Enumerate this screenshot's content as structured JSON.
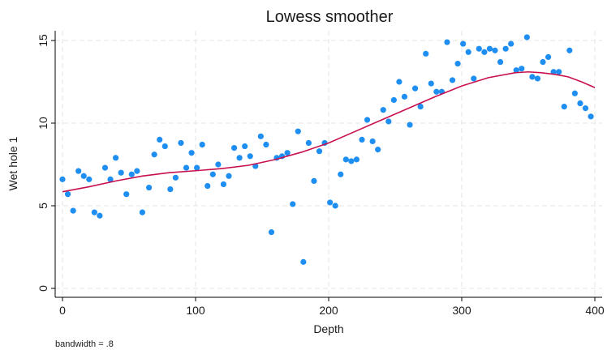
{
  "chart_data": {
    "type": "scatter",
    "title": "Lowess smoother",
    "xlabel": "Depth",
    "ylabel": "Wet hole 1",
    "xlim": [
      0,
      400
    ],
    "ylim": [
      0,
      15.5
    ],
    "xticks": [
      0,
      100,
      200,
      300,
      400
    ],
    "yticks": [
      0,
      5,
      10,
      15
    ],
    "grid": true,
    "note": "bandwidth = .8",
    "colors": {
      "points": "#1f8ef1",
      "line": "#c8104e"
    },
    "series": [
      {
        "type": "scatter",
        "points": [
          [
            0,
            6.6
          ],
          [
            4,
            5.7
          ],
          [
            8,
            4.7
          ],
          [
            12,
            7.1
          ],
          [
            16,
            6.8
          ],
          [
            20,
            6.6
          ],
          [
            24,
            4.6
          ],
          [
            28,
            4.4
          ],
          [
            32,
            7.3
          ],
          [
            36,
            6.6
          ],
          [
            40,
            7.9
          ],
          [
            44,
            7.0
          ],
          [
            48,
            5.7
          ],
          [
            52,
            6.9
          ],
          [
            56,
            7.1
          ],
          [
            60,
            4.6
          ],
          [
            65,
            6.1
          ],
          [
            69,
            8.1
          ],
          [
            73,
            9.0
          ],
          [
            77,
            8.6
          ],
          [
            81,
            6.0
          ],
          [
            85,
            6.7
          ],
          [
            89,
            8.8
          ],
          [
            93,
            7.3
          ],
          [
            97,
            8.2
          ],
          [
            101,
            7.3
          ],
          [
            105,
            8.7
          ],
          [
            109,
            6.2
          ],
          [
            113,
            6.9
          ],
          [
            117,
            7.5
          ],
          [
            121,
            6.3
          ],
          [
            125,
            6.8
          ],
          [
            129,
            8.5
          ],
          [
            133,
            7.9
          ],
          [
            137,
            8.6
          ],
          [
            141,
            8.0
          ],
          [
            145,
            7.4
          ],
          [
            149,
            9.2
          ],
          [
            153,
            8.7
          ],
          [
            157,
            3.4
          ],
          [
            161,
            7.9
          ],
          [
            165,
            8.0
          ],
          [
            169,
            8.2
          ],
          [
            173,
            5.1
          ],
          [
            177,
            9.5
          ],
          [
            181,
            1.6
          ],
          [
            185,
            8.8
          ],
          [
            189,
            6.5
          ],
          [
            193,
            8.3
          ],
          [
            197,
            8.8
          ],
          [
            201,
            5.2
          ],
          [
            205,
            5.0
          ],
          [
            209,
            6.9
          ],
          [
            213,
            7.8
          ],
          [
            217,
            7.7
          ],
          [
            221,
            7.8
          ],
          [
            225,
            9.0
          ],
          [
            229,
            10.2
          ],
          [
            233,
            8.9
          ],
          [
            237,
            8.4
          ],
          [
            241,
            10.8
          ],
          [
            245,
            10.1
          ],
          [
            249,
            11.4
          ],
          [
            253,
            12.5
          ],
          [
            257,
            11.6
          ],
          [
            261,
            9.9
          ],
          [
            265,
            12.1
          ],
          [
            269,
            11.0
          ],
          [
            273,
            14.2
          ],
          [
            277,
            12.4
          ],
          [
            281,
            11.9
          ],
          [
            285,
            11.9
          ],
          [
            289,
            14.9
          ],
          [
            293,
            12.6
          ],
          [
            297,
            13.6
          ],
          [
            301,
            14.8
          ],
          [
            305,
            14.3
          ],
          [
            309,
            12.7
          ],
          [
            313,
            14.5
          ],
          [
            317,
            14.3
          ],
          [
            321,
            14.5
          ],
          [
            325,
            14.4
          ],
          [
            329,
            13.7
          ],
          [
            333,
            14.5
          ],
          [
            337,
            14.8
          ],
          [
            341,
            13.2
          ],
          [
            345,
            13.3
          ],
          [
            349,
            15.2
          ],
          [
            353,
            12.8
          ],
          [
            357,
            12.7
          ],
          [
            361,
            13.7
          ],
          [
            365,
            14.0
          ],
          [
            369,
            13.1
          ],
          [
            373,
            13.1
          ],
          [
            377,
            11.0
          ],
          [
            381,
            14.4
          ],
          [
            385,
            11.8
          ],
          [
            389,
            11.2
          ],
          [
            393,
            10.9
          ],
          [
            397,
            10.4
          ]
        ]
      },
      {
        "type": "line",
        "points": [
          [
            0,
            5.85
          ],
          [
            20,
            6.15
          ],
          [
            40,
            6.5
          ],
          [
            60,
            6.8
          ],
          [
            80,
            7.0
          ],
          [
            100,
            7.12
          ],
          [
            120,
            7.25
          ],
          [
            140,
            7.45
          ],
          [
            160,
            7.8
          ],
          [
            180,
            8.25
          ],
          [
            200,
            8.8
          ],
          [
            220,
            9.5
          ],
          [
            240,
            10.2
          ],
          [
            260,
            10.9
          ],
          [
            280,
            11.6
          ],
          [
            300,
            12.25
          ],
          [
            320,
            12.75
          ],
          [
            340,
            13.05
          ],
          [
            350,
            13.1
          ],
          [
            360,
            13.05
          ],
          [
            370,
            12.95
          ],
          [
            380,
            12.8
          ],
          [
            390,
            12.5
          ],
          [
            400,
            12.15
          ]
        ]
      }
    ]
  }
}
